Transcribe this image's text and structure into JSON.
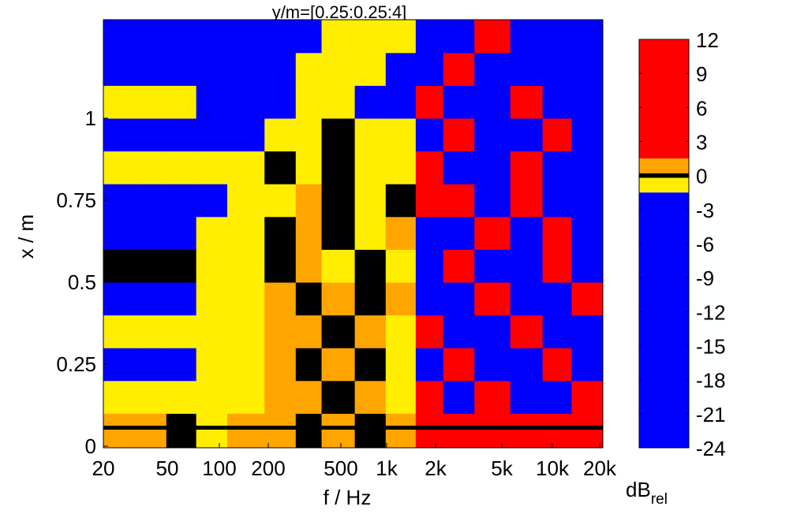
{
  "chart_data": {
    "type": "heatmap",
    "title": "y/m=[0.25:0.25:4]",
    "xlabel": "f / Hz",
    "ylabel": "x / m",
    "x_scale": "log",
    "xlim": [
      20,
      20000
    ],
    "ylim": [
      0,
      1.3
    ],
    "x_ticks": [
      {
        "value": 20,
        "label": "20"
      },
      {
        "value": 50,
        "label": "50"
      },
      {
        "value": 100,
        "label": "100"
      },
      {
        "value": 200,
        "label": "200"
      },
      {
        "value": 500,
        "label": "500"
      },
      {
        "value": 1000,
        "label": "1k"
      },
      {
        "value": 2000,
        "label": "2k"
      },
      {
        "value": 5000,
        "label": "5k"
      },
      {
        "value": 10000,
        "label": "10k"
      },
      {
        "value": 20000,
        "label": "20k"
      }
    ],
    "y_ticks": [
      {
        "value": 0,
        "label": "0"
      },
      {
        "value": 0.25,
        "label": "0.25"
      },
      {
        "value": 0.5,
        "label": "0.5"
      },
      {
        "value": 0.75,
        "label": "0.75"
      },
      {
        "value": 1,
        "label": "1"
      }
    ],
    "approx_grid": {
      "f_hz": [
        28,
        40,
        60,
        90,
        140,
        250,
        320,
        480,
        800,
        1200,
        1900,
        2600,
        4500,
        7000,
        11000,
        16000
      ],
      "x_m": [
        0.05,
        0.15,
        0.25,
        0.35,
        0.45,
        0.55,
        0.65,
        0.75,
        0.85,
        0.95,
        1.05,
        1.15,
        1.25
      ],
      "db": [
        [
          1,
          1,
          0,
          -1,
          1,
          1,
          0,
          1,
          0,
          1,
          6,
          6,
          6,
          6,
          6,
          6
        ],
        [
          -1,
          -1,
          -1,
          -1,
          -1,
          1,
          1,
          0,
          1,
          -1,
          6,
          -6,
          6,
          -6,
          -6,
          6
        ],
        [
          -6,
          -6,
          -6,
          -1,
          -1,
          1,
          0,
          1,
          0,
          -1,
          -6,
          6,
          -6,
          -6,
          6,
          -6
        ],
        [
          -1,
          -1,
          -1,
          -1,
          -1,
          1,
          1,
          0,
          1,
          -1,
          6,
          -6,
          -6,
          6,
          -6,
          -6
        ],
        [
          -6,
          -6,
          -6,
          -1,
          -1,
          1,
          0,
          1,
          0,
          1,
          -6,
          -6,
          6,
          -6,
          -6,
          6
        ],
        [
          0,
          0,
          0,
          -1,
          -1,
          0,
          1,
          -1,
          0,
          -1,
          -6,
          6,
          -6,
          -6,
          6,
          -6
        ],
        [
          -6,
          -6,
          -6,
          -1,
          -1,
          0,
          1,
          0,
          -1,
          1,
          -6,
          -6,
          6,
          -6,
          6,
          -6
        ],
        [
          -6,
          -6,
          -6,
          -6,
          -1,
          -1,
          1,
          0,
          -1,
          0,
          6,
          6,
          -6,
          6,
          -6,
          -6
        ],
        [
          -1,
          -1,
          -1,
          -1,
          -1,
          0,
          -1,
          0,
          -1,
          -1,
          6,
          -6,
          -6,
          6,
          -6,
          -6
        ],
        [
          -6,
          -6,
          -6,
          -6,
          -6,
          -1,
          -1,
          0,
          -1,
          -1,
          -6,
          6,
          -6,
          -6,
          6,
          -6
        ],
        [
          -1,
          -1,
          -1,
          -6,
          -6,
          -6,
          -1,
          -1,
          -6,
          -6,
          6,
          -6,
          -6,
          6,
          -6,
          -6
        ],
        [
          -6,
          -6,
          -6,
          -6,
          -6,
          -6,
          -1,
          -1,
          -1,
          -6,
          -6,
          6,
          -6,
          -6,
          -6,
          -6
        ],
        [
          -6,
          -6,
          -6,
          -6,
          -6,
          -6,
          -6,
          -1,
          -1,
          -1,
          -6,
          -6,
          6,
          -6,
          -6,
          -6
        ]
      ]
    },
    "colorbar": {
      "label": "dB",
      "label_subscript": "rel",
      "clim": [
        -24,
        12
      ],
      "ticks": [
        "12",
        "9",
        "6",
        "3",
        "0",
        "-3",
        "-6",
        "-9",
        "-12",
        "-15",
        "-18",
        "-21",
        "-24"
      ],
      "segments": [
        {
          "from": 1.5,
          "to": 12,
          "color": "#ff0000"
        },
        {
          "from": 0.2,
          "to": 1.5,
          "color": "#ffa500"
        },
        {
          "from": -0.2,
          "to": 0.2,
          "color": "#000000"
        },
        {
          "from": -1.5,
          "to": -0.2,
          "color": "#ffee00"
        },
        {
          "from": -24,
          "to": -1.5,
          "color": "#0000ff"
        }
      ]
    },
    "grid": false,
    "legend": "none"
  }
}
